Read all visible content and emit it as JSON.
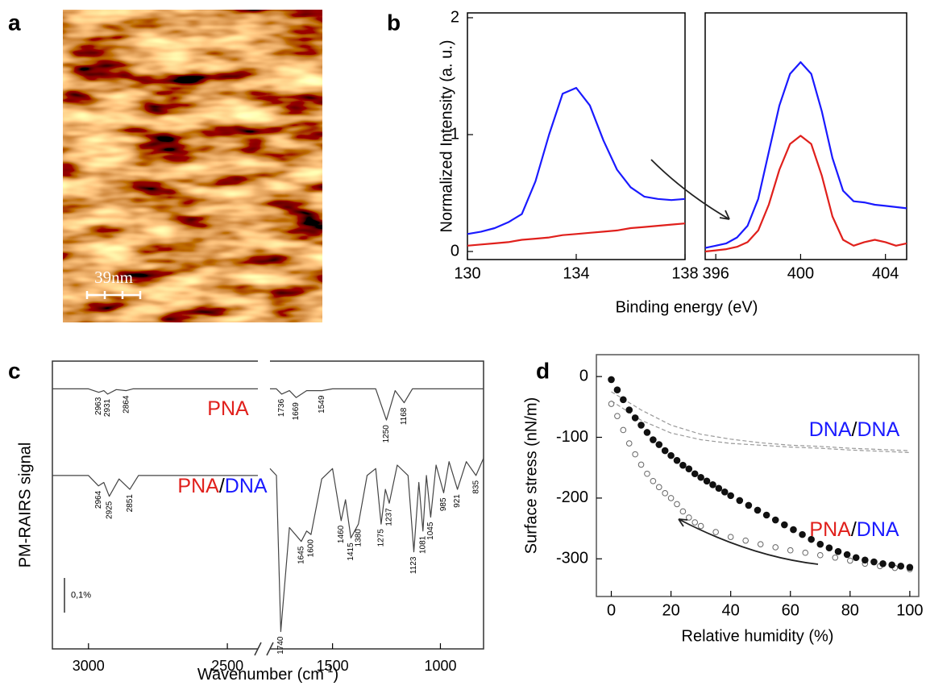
{
  "panel_labels": {
    "a": "a",
    "b": "b",
    "c": "c",
    "d": "d"
  },
  "afm_image": {
    "scale_bar": "39nm"
  },
  "chart_data": [
    {
      "type": "line",
      "ylabel": "Normalized Intensity (a. u.)",
      "xlabel": "Binding energy (eV)",
      "xlim": [
        130,
        138
      ],
      "xticks": [
        130,
        134,
        138
      ],
      "ylim": [
        0,
        2
      ],
      "yticks": [
        0,
        1,
        2
      ],
      "x": [
        130,
        130.5,
        131,
        131.5,
        132,
        132.5,
        133,
        133.5,
        134,
        134.5,
        135,
        135.5,
        136,
        136.5,
        137,
        137.5,
        138
      ],
      "series": [
        {
          "color": "#1a1aff",
          "values": [
            0.15,
            0.17,
            0.2,
            0.25,
            0.32,
            0.6,
            1.0,
            1.35,
            1.4,
            1.25,
            0.95,
            0.7,
            0.55,
            0.47,
            0.45,
            0.44,
            0.45
          ]
        },
        {
          "color": "#e0201c",
          "values": [
            0.05,
            0.06,
            0.07,
            0.08,
            0.1,
            0.11,
            0.12,
            0.14,
            0.15,
            0.16,
            0.17,
            0.18,
            0.2,
            0.21,
            0.22,
            0.23,
            0.24
          ]
        }
      ]
    },
    {
      "type": "line",
      "xlim": [
        395.5,
        405
      ],
      "xticks": [
        396,
        400,
        404
      ],
      "ylim": [
        0,
        2
      ],
      "x": [
        395.5,
        396,
        396.5,
        397,
        397.5,
        398,
        398.5,
        399,
        399.5,
        400,
        400.5,
        401,
        401.5,
        402,
        402.5,
        403,
        403.5,
        404,
        404.5,
        405
      ],
      "series": [
        {
          "color": "#1a1aff",
          "values": [
            0.03,
            0.05,
            0.07,
            0.12,
            0.22,
            0.45,
            0.85,
            1.25,
            1.52,
            1.62,
            1.52,
            1.2,
            0.8,
            0.52,
            0.43,
            0.42,
            0.4,
            0.39,
            0.38,
            0.37
          ]
        },
        {
          "color": "#e0201c",
          "values": [
            0.0,
            0.01,
            0.02,
            0.04,
            0.08,
            0.18,
            0.4,
            0.7,
            0.92,
            0.99,
            0.92,
            0.65,
            0.3,
            0.1,
            0.05,
            0.08,
            0.1,
            0.08,
            0.05,
            0.07
          ]
        }
      ]
    },
    {
      "type": "spectrum",
      "ylabel": "PM-RAIRS signal",
      "xlabel": [
        "Wavenumber (cm",
        "-1",
        ")"
      ],
      "xlim": [
        3130,
        800
      ],
      "xbreak": [
        2390,
        1790
      ],
      "xticks": [
        3000,
        2500,
        1500,
        1000
      ],
      "ylim": [
        0,
        0.83
      ],
      "scale_bar": {
        "value": 0.1,
        "label": "0,1%"
      },
      "series": [
        {
          "color": "#444",
          "x": [
            3130,
            3000,
            2963,
            2945,
            2931,
            2900,
            2864,
            2840,
            2600,
            2390,
            2000,
            1790,
            1760,
            1736,
            1700,
            1669,
            1620,
            1549,
            1500,
            1300,
            1250,
            1210,
            1168,
            1130,
            1000,
            900,
            800
          ],
          "values": [
            0.75,
            0.75,
            0.74,
            0.745,
            0.735,
            0.748,
            0.745,
            0.75,
            0.75,
            0.75,
            null,
            0.75,
            0.75,
            0.735,
            0.745,
            0.725,
            0.745,
            0.745,
            0.75,
            0.75,
            0.66,
            0.745,
            0.71,
            0.75,
            0.75,
            0.75,
            0.75
          ],
          "peaks": [
            2963,
            2931,
            2864,
            1736,
            1669,
            1549,
            1250,
            1168
          ]
        },
        {
          "color": "#444",
          "x": [
            3130,
            3000,
            2964,
            2945,
            2925,
            2890,
            2851,
            2820,
            2600,
            2390,
            2000,
            1790,
            1760,
            1740,
            1700,
            1645,
            1620,
            1600,
            1550,
            1500,
            1460,
            1440,
            1415,
            1380,
            1340,
            1300,
            1275,
            1255,
            1237,
            1200,
            1150,
            1123,
            1100,
            1081,
            1065,
            1045,
            1020,
            985,
            960,
            921,
            880,
            835,
            800
          ],
          "values": [
            0.5,
            0.5,
            0.47,
            0.48,
            0.44,
            0.49,
            0.46,
            0.5,
            0.5,
            0.5,
            null,
            0.52,
            0.5,
            0.05,
            0.35,
            0.31,
            0.34,
            0.33,
            0.49,
            0.52,
            0.37,
            0.43,
            0.32,
            0.36,
            0.5,
            0.52,
            0.36,
            0.46,
            0.42,
            0.53,
            0.5,
            0.28,
            0.48,
            0.34,
            0.5,
            0.38,
            0.53,
            0.45,
            0.54,
            0.46,
            0.54,
            0.5,
            0.55
          ],
          "peaks": [
            2964,
            2925,
            2851,
            1740,
            1645,
            1600,
            1460,
            1415,
            1380,
            1275,
            1237,
            1123,
            1081,
            1045,
            985,
            921,
            835
          ]
        }
      ],
      "annotations": [
        [
          {
            "text": "PNA",
            "color": "#e0201c"
          }
        ],
        [
          {
            "text": "PNA",
            "color": "#e0201c"
          },
          {
            "text": "/",
            "color": "#000"
          },
          {
            "text": "DNA",
            "color": "#1a1aff"
          }
        ]
      ]
    },
    {
      "type": "scatter",
      "ylabel": "Surface stress (nN/m)",
      "xlabel": "Relative humidity (%)",
      "xlim": [
        -5,
        103
      ],
      "xticks": [
        0,
        20,
        40,
        60,
        80,
        100
      ],
      "ylim": [
        -362,
        36
      ],
      "yticks": [
        0,
        -100,
        -200,
        -300
      ],
      "series": [
        {
          "color": "#999",
          "style": "dashed",
          "x": [
            0,
            10,
            20,
            30,
            40,
            50,
            60,
            70,
            80,
            90,
            100
          ],
          "values": [
            -25,
            -55,
            -80,
            -95,
            -103,
            -109,
            -113,
            -115,
            -118,
            -120,
            -122
          ]
        },
        {
          "color": "#999",
          "style": "dashed",
          "x": [
            0,
            10,
            20,
            30,
            40,
            50,
            60,
            70,
            80,
            90,
            100
          ],
          "values": [
            -40,
            -72,
            -93,
            -104,
            -110,
            -113,
            -116,
            -118,
            -121,
            -123,
            -125
          ]
        },
        {
          "color": "#666",
          "marker": "open",
          "x": [
            0,
            2,
            4,
            6,
            8,
            10,
            12,
            14,
            16,
            18,
            20,
            22,
            24,
            26,
            28,
            30,
            35,
            40,
            45,
            50,
            55,
            60,
            65,
            70,
            75,
            80,
            85,
            90,
            95,
            100
          ],
          "values": [
            -45,
            -65,
            -88,
            -110,
            -128,
            -145,
            -160,
            -172,
            -182,
            -192,
            -200,
            -210,
            -222,
            -232,
            -240,
            -246,
            -256,
            -264,
            -270,
            -276,
            -281,
            -286,
            -290,
            -294,
            -298,
            -303,
            -308,
            -312,
            -315,
            -317
          ]
        },
        {
          "color": "#111",
          "marker": "filled",
          "x": [
            0,
            2,
            4,
            6,
            8,
            10,
            12,
            14,
            16,
            18,
            20,
            22,
            24,
            26,
            28,
            30,
            32,
            34,
            36,
            38,
            40,
            43,
            46,
            49,
            52,
            55,
            58,
            61,
            64,
            67,
            70,
            73,
            76,
            79,
            82,
            85,
            88,
            91,
            94,
            97,
            100
          ],
          "values": [
            -5,
            -22,
            -38,
            -55,
            -68,
            -80,
            -92,
            -104,
            -112,
            -122,
            -130,
            -138,
            -146,
            -152,
            -160,
            -166,
            -172,
            -178,
            -184,
            -190,
            -196,
            -204,
            -212,
            -220,
            -228,
            -236,
            -244,
            -252,
            -260,
            -268,
            -276,
            -282,
            -288,
            -293,
            -298,
            -302,
            -305,
            -308,
            -310,
            -312,
            -314
          ]
        }
      ],
      "annotations": [
        [
          {
            "text": "DNA",
            "color": "#1a1aff"
          },
          {
            "text": "/",
            "color": "#000"
          },
          {
            "text": "DNA",
            "color": "#1a1aff"
          }
        ],
        [
          {
            "text": "PNA",
            "color": "#e0201c"
          },
          {
            "text": "/",
            "color": "#000"
          },
          {
            "text": "DNA",
            "color": "#1a1aff"
          }
        ]
      ]
    }
  ]
}
